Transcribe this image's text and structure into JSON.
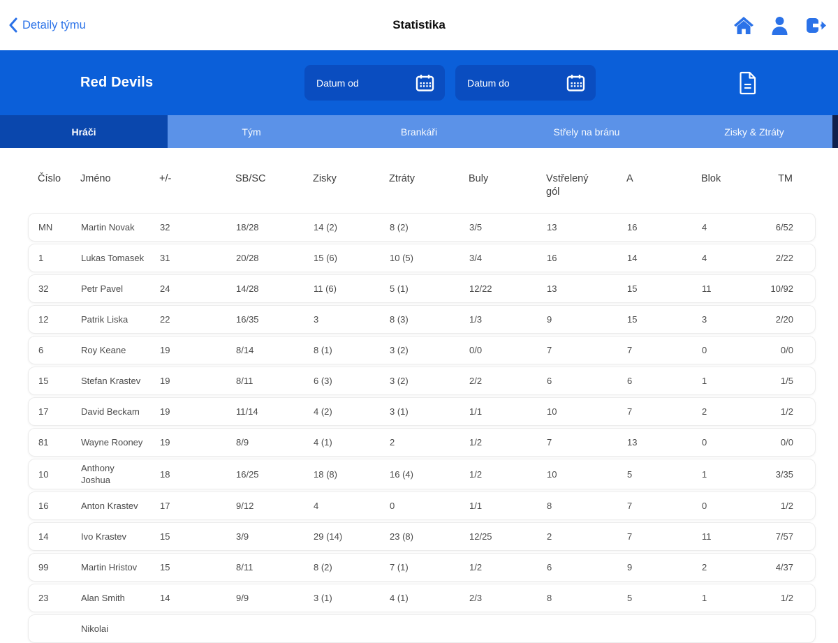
{
  "nav": {
    "back_label": "Detaily týmu",
    "title": "Statistika"
  },
  "header": {
    "team_name": "Red Devils",
    "date_from_label": "Datum od",
    "date_to_label": "Datum do"
  },
  "tabs": [
    {
      "label": "Hráči",
      "active": true
    },
    {
      "label": "Tým",
      "active": false
    },
    {
      "label": "Brankáři",
      "active": false
    },
    {
      "label": "Střely na bránu",
      "active": false
    },
    {
      "label": "Zisky & Ztráty",
      "active": false
    }
  ],
  "table": {
    "columns": [
      "Číslo",
      "Jméno",
      "+/-",
      "SB/SC",
      "Zisky",
      "Ztráty",
      "Buly",
      "Vstřelený gól",
      "A",
      "Blok",
      "TM"
    ],
    "rows": [
      [
        "MN",
        "Martin Novak",
        "32",
        "18/28",
        "14 (2)",
        "8 (2)",
        "3/5",
        "13",
        "16",
        "4",
        "6/52"
      ],
      [
        "1",
        "Lukas Tomasek",
        "31",
        "20/28",
        "15 (6)",
        "10 (5)",
        "3/4",
        "16",
        "14",
        "4",
        "2/22"
      ],
      [
        "32",
        "Petr Pavel",
        "24",
        "14/28",
        "11 (6)",
        "5 (1)",
        "12/22",
        "13",
        "15",
        "11",
        "10/92"
      ],
      [
        "12",
        "Patrik Liska",
        "22",
        "16/35",
        "3",
        "8 (3)",
        "1/3",
        "9",
        "15",
        "3",
        "2/20"
      ],
      [
        "6",
        "Roy Keane",
        "19",
        "8/14",
        "8 (1)",
        "3 (2)",
        "0/0",
        "7",
        "7",
        "0",
        "0/0"
      ],
      [
        "15",
        "Stefan Krastev",
        "19",
        "8/11",
        "6 (3)",
        "3 (2)",
        "2/2",
        "6",
        "6",
        "1",
        "1/5"
      ],
      [
        "17",
        "David Beckam",
        "19",
        "11/14",
        "4 (2)",
        "3 (1)",
        "1/1",
        "10",
        "7",
        "2",
        "1/2"
      ],
      [
        "81",
        "Wayne Rooney",
        "19",
        "8/9",
        "4 (1)",
        "2",
        "1/2",
        "7",
        "13",
        "0",
        "0/0"
      ],
      [
        "10",
        "Anthony\nJoshua",
        "18",
        "16/25",
        "18 (8)",
        "16 (4)",
        "1/2",
        "10",
        "5",
        "1",
        "3/35"
      ],
      [
        "16",
        "Anton Krastev",
        "17",
        "9/12",
        "4",
        "0",
        "1/1",
        "8",
        "7",
        "0",
        "1/2"
      ],
      [
        "14",
        "Ivo Krastev",
        "15",
        "3/9",
        "29 (14)",
        "23 (8)",
        "12/25",
        "2",
        "7",
        "11",
        "7/57"
      ],
      [
        "99",
        "Martin Hristov",
        "15",
        "8/11",
        "8 (2)",
        "7 (1)",
        "1/2",
        "6",
        "9",
        "2",
        "4/37"
      ],
      [
        "23",
        "Alan Smith",
        "14",
        "9/9",
        "3 (1)",
        "4 (1)",
        "2/3",
        "8",
        "5",
        "1",
        "1/2"
      ]
    ],
    "partial_row": [
      "",
      "Nikolai",
      "",
      "",
      "",
      "",
      "",
      "",
      "",
      "",
      ""
    ]
  },
  "colors": {
    "accent_blue": "#2B72E8",
    "header_blue": "#0B5FD9",
    "date_field_blue": "#0A4DC0",
    "tabbar_blue": "#5B92E8",
    "active_tab_blue": "#0A47AD"
  }
}
